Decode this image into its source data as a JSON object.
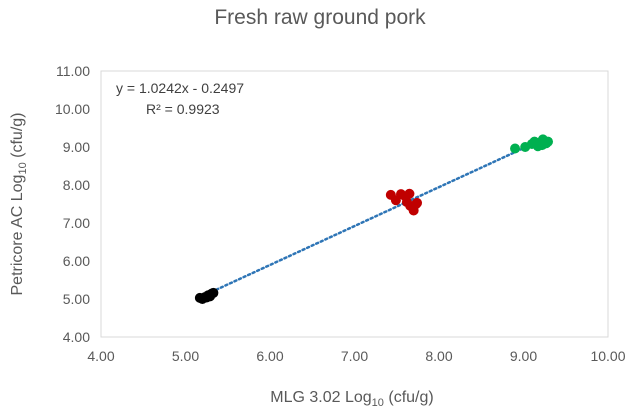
{
  "chart_data": {
    "type": "scatter",
    "title": "Fresh raw ground pork",
    "xlabel": {
      "pre": "MLG 3.02 Log",
      "sub": "10",
      "post": " (cfu/g)"
    },
    "ylabel": {
      "pre": "Petricore AC Log",
      "sub": "10",
      "post": " (cfu/g)"
    },
    "xlim": [
      4.0,
      10.0
    ],
    "ylim": [
      4.0,
      11.0
    ],
    "x_ticks": [
      "4.00",
      "5.00",
      "6.00",
      "7.00",
      "8.00",
      "9.00",
      "10.00"
    ],
    "y_ticks": [
      "4.00",
      "5.00",
      "6.00",
      "7.00",
      "8.00",
      "9.00",
      "10.00",
      "11.00"
    ],
    "grid": false,
    "annotations": [
      "y = 1.0242x - 0.2497",
      "R² = 0.9923"
    ],
    "trendline": {
      "slope": 1.0242,
      "intercept": -0.2497,
      "x_range": [
        5.15,
        9.25
      ],
      "style": "dotted",
      "color": "#2E75B6"
    },
    "series": [
      {
        "color": "#000000",
        "points": [
          [
            5.17,
            5.03
          ],
          [
            5.2,
            5.0
          ],
          [
            5.23,
            5.05
          ],
          [
            5.27,
            5.1
          ],
          [
            5.29,
            5.07
          ],
          [
            5.31,
            5.14
          ],
          [
            5.33,
            5.16
          ],
          [
            5.25,
            5.04
          ]
        ]
      },
      {
        "color": "#C00000",
        "points": [
          [
            7.43,
            7.74
          ],
          [
            7.49,
            7.6
          ],
          [
            7.55,
            7.76
          ],
          [
            7.6,
            7.7
          ],
          [
            7.65,
            7.77
          ],
          [
            7.62,
            7.55
          ],
          [
            7.66,
            7.45
          ],
          [
            7.7,
            7.33
          ],
          [
            7.73,
            7.5
          ],
          [
            7.74,
            7.53
          ]
        ]
      },
      {
        "color": "#00B050",
        "points": [
          [
            8.9,
            8.96
          ],
          [
            9.02,
            9.0
          ],
          [
            9.1,
            9.08
          ],
          [
            9.13,
            9.14
          ],
          [
            9.17,
            9.02
          ],
          [
            9.2,
            9.12
          ],
          [
            9.23,
            9.2
          ],
          [
            9.25,
            9.12
          ],
          [
            9.27,
            9.1
          ],
          [
            9.29,
            9.14
          ],
          [
            9.22,
            9.05
          ]
        ]
      }
    ]
  }
}
